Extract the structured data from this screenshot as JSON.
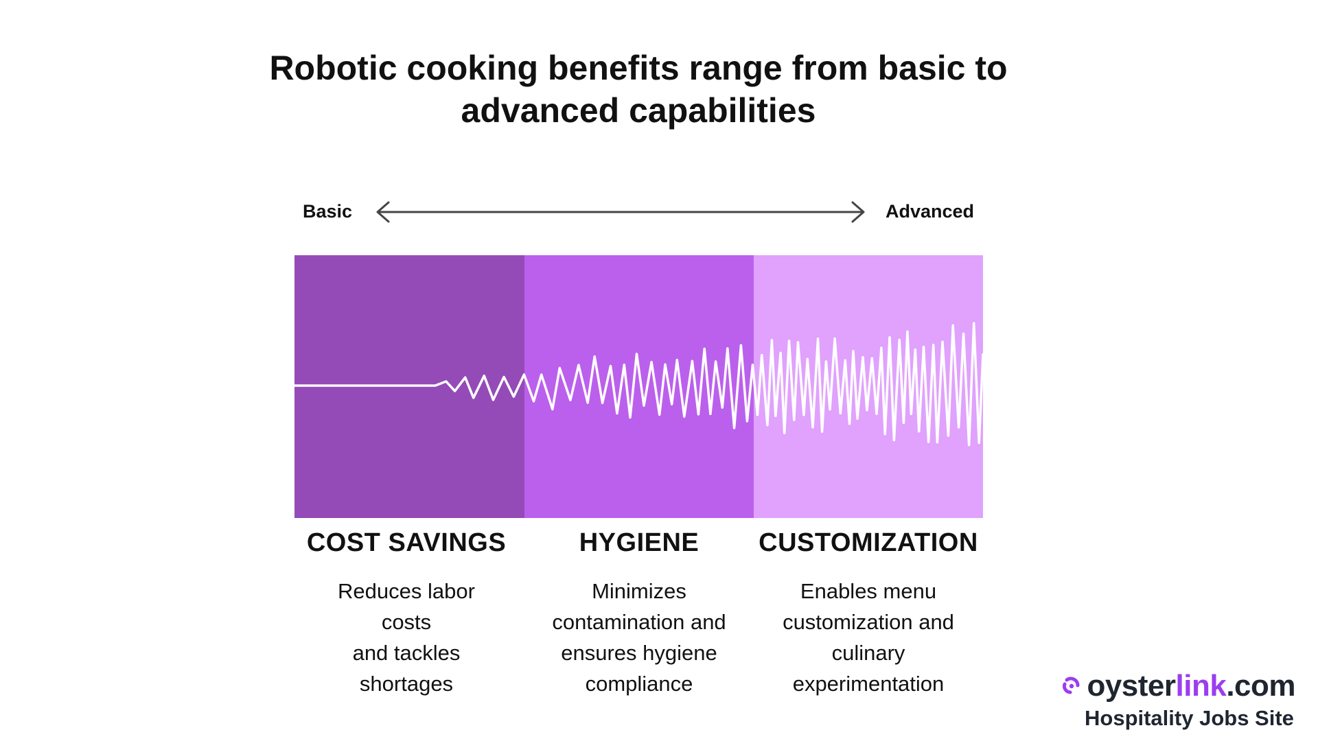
{
  "title": "Robotic cooking benefits range from basic to advanced capabilities",
  "scale": {
    "left_label": "Basic",
    "right_label": "Advanced"
  },
  "colors": {
    "band_basic": "#944bb8",
    "band_mid": "#bb60ec",
    "band_advanced": "#e0a2fd",
    "wave": "#ffffff",
    "arrow": "#444444",
    "brand_dark": "#1f2630",
    "brand_accent": "#9b3df0"
  },
  "benefits": [
    {
      "title": "COST SAVINGS",
      "description_lines": [
        "Reduces labor",
        "costs",
        "and tackles",
        "shortages"
      ]
    },
    {
      "title": "HYGIENE",
      "description_lines": [
        "Minimizes",
        "contamination and",
        "ensures hygiene",
        "compliance"
      ]
    },
    {
      "title": "CUSTOMIZATION",
      "description_lines": [
        "Enables menu",
        "customization and",
        "culinary",
        "experimentation"
      ]
    }
  ],
  "brand": {
    "name_part1": "oyster",
    "name_part2": "link",
    "name_part3": ".com",
    "tagline": "Hospitality Jobs Site",
    "logo_icon": "oyster-logo-icon"
  }
}
